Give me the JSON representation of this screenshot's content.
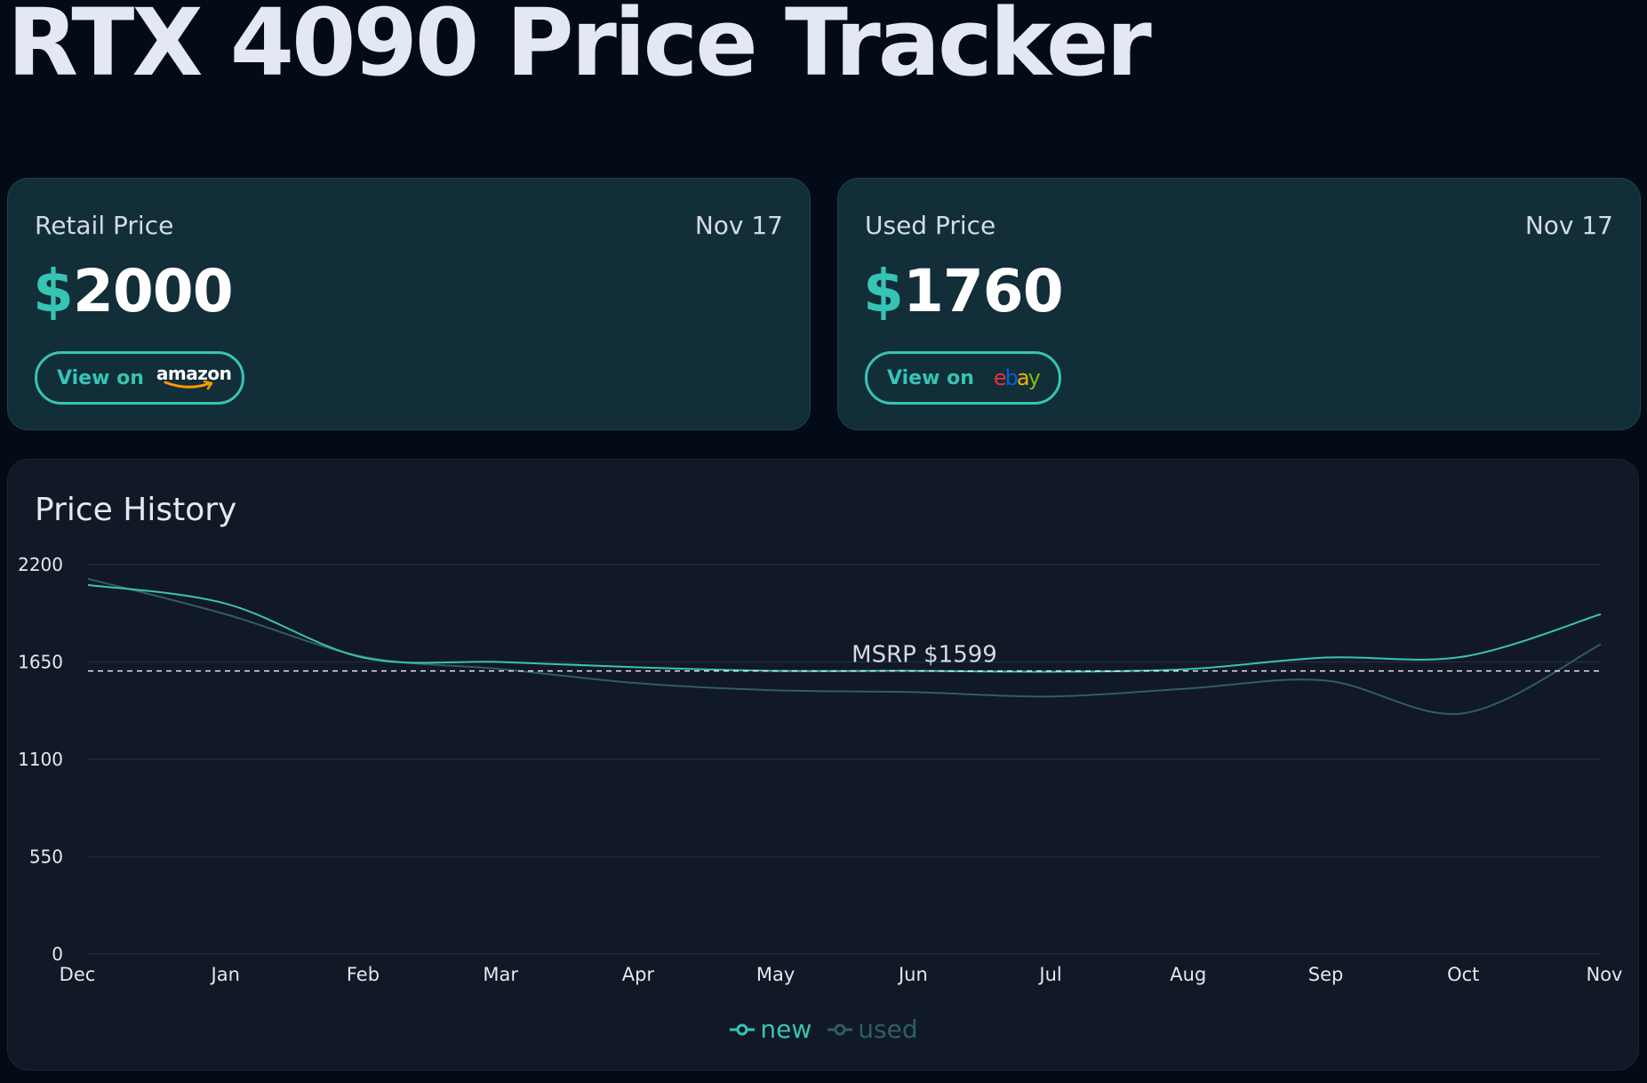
{
  "page": {
    "title": "RTX 4090 Price Tracker"
  },
  "retail": {
    "label": "Retail Price",
    "date": "Nov 17",
    "currency": "$",
    "price": "2000",
    "button_text": "View on",
    "store_logo": "amazon",
    "logo_icon": "amazon-smile-icon"
  },
  "used": {
    "label": "Used Price",
    "date": "Nov 17",
    "currency": "$",
    "price": "1760",
    "button_text": "View on",
    "store_logo": "ebay",
    "logo_letters": [
      {
        "ch": "e",
        "color": "#e53238"
      },
      {
        "ch": "b",
        "color": "#0064d2"
      },
      {
        "ch": "a",
        "color": "#f5af02"
      },
      {
        "ch": "y",
        "color": "#86b817"
      }
    ]
  },
  "colors": {
    "accent": "#37c4b4",
    "used_line": "#2f5f60",
    "background": "#030b17",
    "card": "#112e39",
    "chart_card": "#111826"
  },
  "history": {
    "title": "Price History"
  },
  "chart_data": {
    "type": "line",
    "categories": [
      "Dec",
      "Jan",
      "Feb",
      "Mar",
      "Apr",
      "May",
      "Jun",
      "Jul",
      "Aug",
      "Sep",
      "Oct",
      "Nov"
    ],
    "series": [
      {
        "name": "new",
        "color": "#37c4b4",
        "values": [
          2085,
          1980,
          1675,
          1650,
          1620,
          1600,
          1600,
          1595,
          1610,
          1675,
          1680,
          1920
        ]
      },
      {
        "name": "used",
        "color": "#2f5f60",
        "values": [
          2120,
          1920,
          1680,
          1610,
          1530,
          1490,
          1480,
          1455,
          1500,
          1545,
          1360,
          1750
        ]
      }
    ],
    "reference_line": {
      "value": 1599,
      "label": "MSRP $1599"
    },
    "ylim": [
      0,
      2200
    ],
    "yticks": [
      0,
      550,
      1100,
      1650,
      2200
    ],
    "grid": true,
    "legend_position": "bottom-center"
  }
}
